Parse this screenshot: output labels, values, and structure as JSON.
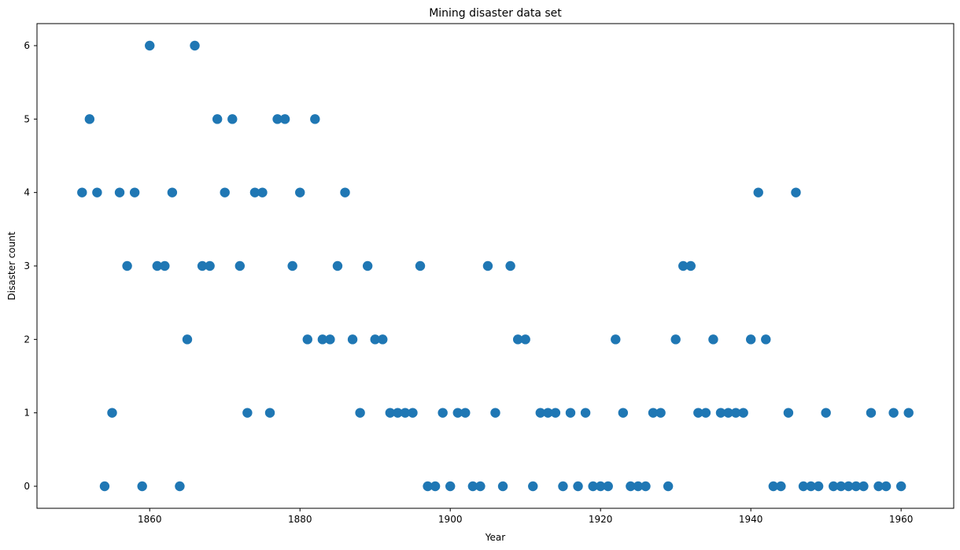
{
  "chart_data": {
    "type": "scatter",
    "title": "Mining disaster data set",
    "xlabel": "Year",
    "ylabel": "Disaster count",
    "xlim": [
      1845,
      1967
    ],
    "ylim": [
      -0.3,
      6.3
    ],
    "xticks": [
      1860,
      1880,
      1900,
      1920,
      1940,
      1960
    ],
    "yticks": [
      0,
      1,
      2,
      3,
      4,
      5,
      6
    ],
    "grid": false,
    "marker_color": "#1f77b4",
    "x": [
      1851,
      1852,
      1853,
      1854,
      1855,
      1856,
      1857,
      1858,
      1859,
      1860,
      1861,
      1862,
      1863,
      1864,
      1865,
      1866,
      1867,
      1868,
      1869,
      1870,
      1871,
      1872,
      1873,
      1874,
      1875,
      1876,
      1877,
      1878,
      1879,
      1880,
      1881,
      1882,
      1883,
      1884,
      1885,
      1886,
      1887,
      1888,
      1889,
      1890,
      1891,
      1892,
      1893,
      1894,
      1895,
      1896,
      1897,
      1898,
      1899,
      1900,
      1901,
      1902,
      1903,
      1904,
      1905,
      1906,
      1907,
      1908,
      1909,
      1910,
      1911,
      1912,
      1913,
      1914,
      1915,
      1916,
      1917,
      1918,
      1919,
      1920,
      1921,
      1922,
      1923,
      1924,
      1925,
      1926,
      1927,
      1928,
      1929,
      1930,
      1931,
      1932,
      1933,
      1934,
      1935,
      1936,
      1937,
      1938,
      1939,
      1940,
      1941,
      1942,
      1943,
      1944,
      1945,
      1946,
      1947,
      1948,
      1949,
      1950,
      1951,
      1952,
      1953,
      1954,
      1955,
      1956,
      1957,
      1958,
      1959,
      1960,
      1961
    ],
    "y": [
      4,
      5,
      4,
      0,
      1,
      4,
      3,
      4,
      0,
      6,
      3,
      3,
      4,
      0,
      2,
      6,
      3,
      3,
      5,
      4,
      5,
      3,
      1,
      4,
      4,
      1,
      5,
      5,
      3,
      4,
      2,
      5,
      2,
      2,
      3,
      4,
      2,
      1,
      3,
      2,
      2,
      1,
      1,
      1,
      1,
      3,
      0,
      0,
      1,
      0,
      1,
      1,
      0,
      0,
      3,
      1,
      0,
      3,
      2,
      2,
      0,
      1,
      1,
      1,
      0,
      1,
      0,
      1,
      0,
      0,
      0,
      2,
      1,
      0,
      0,
      0,
      1,
      1,
      0,
      2,
      3,
      3,
      1,
      1,
      2,
      1,
      1,
      1,
      1,
      2,
      4,
      2,
      0,
      0,
      1,
      4,
      0,
      0,
      0,
      1,
      0,
      0,
      0,
      0,
      0,
      1,
      0,
      0,
      1,
      0,
      1
    ]
  }
}
